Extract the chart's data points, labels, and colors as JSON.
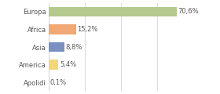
{
  "categories": [
    "Europa",
    "Africa",
    "Asia",
    "America",
    "Apolidi"
  ],
  "values": [
    70.6,
    15.2,
    8.8,
    5.4,
    0.1
  ],
  "labels": [
    "70,6%",
    "15,2%",
    "8,8%",
    "5,4%",
    "0,1%"
  ],
  "bar_colors": [
    "#b5c98e",
    "#f0a875",
    "#7b8fc0",
    "#f0d87a",
    "#f0d87a"
  ],
  "background_color": "#ffffff",
  "xlim": [
    0,
    80
  ],
  "label_fontsize": 6.0,
  "tick_fontsize": 6.0,
  "grid_color": "#cccccc",
  "grid_xticks": [
    0,
    20,
    40,
    60,
    80
  ],
  "bar_height": 0.55
}
